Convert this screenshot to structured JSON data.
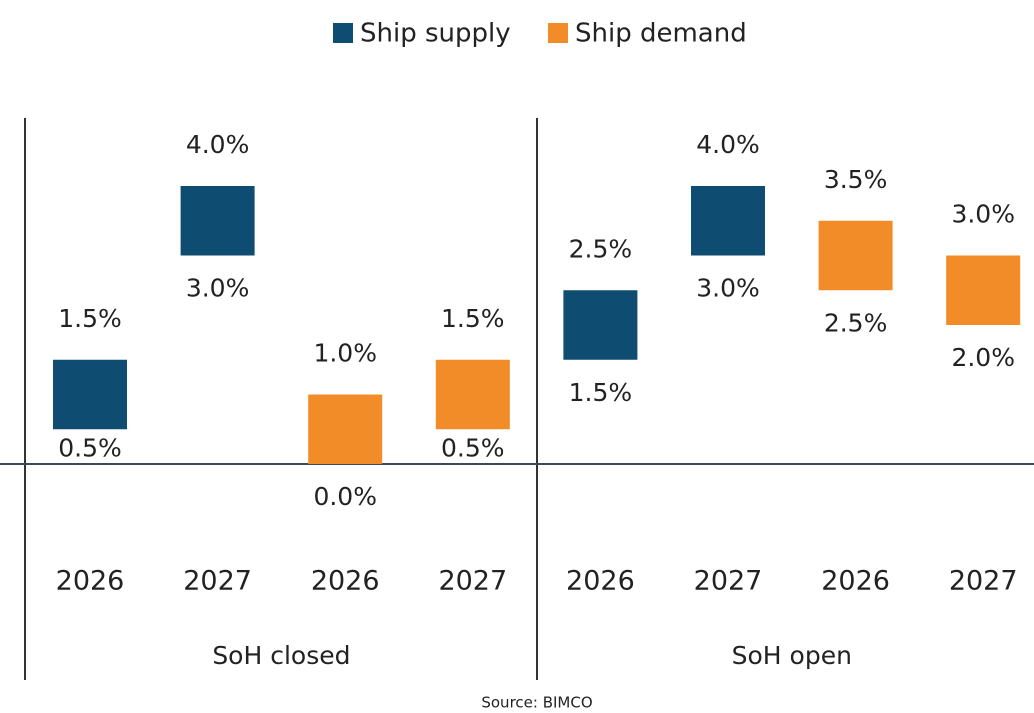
{
  "chart_data": {
    "type": "range_bar",
    "series": [
      {
        "name": "Ship supply",
        "color": "#0f4c72"
      },
      {
        "name": "Ship demand",
        "color": "#f28c28"
      }
    ],
    "groups": [
      {
        "name": "SoH closed",
        "series": [
          {
            "categories": [
              "2026",
              "2027"
            ],
            "low": [
              0.5,
              3.0
            ],
            "high": [
              1.5,
              4.0
            ],
            "low_labels": [
              "0.5%",
              "3.0%"
            ],
            "high_labels": [
              "1.5%",
              "4.0%"
            ]
          },
          {
            "categories": [
              "2026",
              "2027"
            ],
            "low": [
              0.0,
              0.5
            ],
            "high": [
              1.0,
              1.5
            ],
            "low_labels": [
              "0.0%",
              "0.5%"
            ],
            "high_labels": [
              "1.0%",
              "1.5%"
            ]
          }
        ]
      },
      {
        "name": "SoH open",
        "series": [
          {
            "categories": [
              "2026",
              "2027"
            ],
            "low": [
              1.5,
              3.0
            ],
            "high": [
              2.5,
              4.0
            ],
            "low_labels": [
              "1.5%",
              "3.0%"
            ],
            "high_labels": [
              "2.5%",
              "4.0%"
            ]
          },
          {
            "categories": [
              "2026",
              "2027"
            ],
            "low": [
              2.5,
              2.0
            ],
            "high": [
              3.5,
              3.0
            ],
            "low_labels": [
              "2.5%",
              "2.0%"
            ],
            "high_labels": [
              "3.5%",
              "3.0%"
            ]
          }
        ]
      }
    ],
    "note": "Source: BIMCO"
  }
}
